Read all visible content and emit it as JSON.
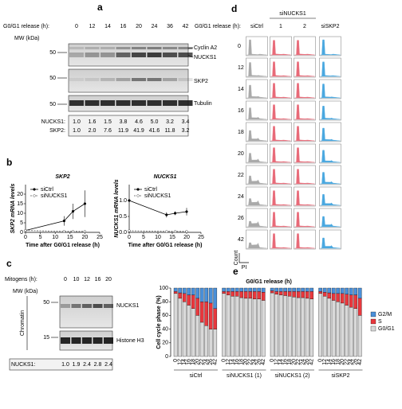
{
  "panel_labels": [
    "a",
    "b",
    "c",
    "d",
    "e"
  ],
  "blot_a": {
    "header_label": "G0/G1 release (h):",
    "times": [
      0,
      12,
      14,
      16,
      20,
      24,
      36,
      42
    ],
    "mw_label": "MW (kDa)",
    "markers": [
      "50",
      "50",
      "50"
    ],
    "band_labels": [
      "Cyclin A2",
      "NUCKS1",
      "SKP2",
      "Tubulin"
    ],
    "quant": [
      {
        "label": "NUCKS1:",
        "values": [
          "1.0",
          "1.6",
          "1.5",
          "3.8",
          "4.6",
          "5.0",
          "3.2",
          "3.4"
        ]
      },
      {
        "label": "SKP2:",
        "values": [
          "1.0",
          "2.0",
          "7.6",
          "11.9",
          "41.9",
          "41.6",
          "11.8",
          "3.2"
        ]
      }
    ]
  },
  "blot_c": {
    "header_label": "Mitogens (h):",
    "times": [
      0,
      10,
      12,
      16,
      20
    ],
    "mw_label": "MW (kDa)",
    "markers": [
      "50",
      "15"
    ],
    "band_labels": [
      "NUCKS1",
      "Histone H3"
    ],
    "fraction_label": "Chromatin",
    "quant": [
      {
        "label": "NUCKS1:",
        "values": [
          "1.0",
          "1.9",
          "2.4",
          "2.8",
          "2.4"
        ]
      }
    ]
  },
  "flow_d": {
    "header_label": "G0/G1 release (h):",
    "group_label": "siNUCKS1",
    "columns": [
      "siCtrl",
      "1",
      "2",
      "siSKP2"
    ],
    "rows": [
      0,
      12,
      14,
      16,
      18,
      20,
      22,
      24,
      26,
      42
    ],
    "x_axis": "PI",
    "y_axis": "Count"
  },
  "chart_data": [
    {
      "type": "line",
      "title": "SKP2",
      "xlabel": "Time after G0/G1 release (h)",
      "ylabel": "SKP2 mRNA levels",
      "x": [
        0,
        13,
        16,
        20
      ],
      "xlim": [
        0,
        25
      ],
      "xticks": [
        0,
        5,
        10,
        15,
        20,
        25
      ],
      "ylim": [
        0,
        25
      ],
      "yticks": [
        0,
        5,
        10,
        15,
        20
      ],
      "series": [
        {
          "name": "siCtrl",
          "color": "#000000",
          "line_style": "solid",
          "values": [
            1,
            6,
            11,
            15
          ],
          "errors": [
            0.3,
            2.5,
            4,
            7
          ]
        },
        {
          "name": "siNUCKS1",
          "color": "#555555",
          "line_style": "dashed",
          "values": [
            1,
            0.5,
            0.5,
            0.5
          ],
          "errors": [
            0.1,
            0.2,
            0.2,
            0.2
          ]
        }
      ]
    },
    {
      "type": "line",
      "title": "NUCKS1",
      "xlabel": "Time after G0/G1 release (h)",
      "ylabel": "NUCKS1 mRNA levels",
      "x": [
        0,
        13,
        16,
        20
      ],
      "xlim": [
        0,
        25
      ],
      "xticks": [
        0,
        5,
        10,
        15,
        20,
        25
      ],
      "ylim": [
        0,
        1.5
      ],
      "yticks": [
        {
          "value": 0,
          "label": "0.0"
        },
        {
          "value": 0.5,
          "label": "0.5"
        },
        {
          "value": 1,
          "label": "1.0"
        }
      ],
      "series": [
        {
          "name": "siCtrl",
          "color": "#000000",
          "line_style": "solid",
          "values": [
            1.0,
            0.55,
            0.6,
            0.65
          ],
          "errors": [
            0.02,
            0.08,
            0.06,
            0.12
          ]
        },
        {
          "name": "siNUCKS1",
          "color": "#555555",
          "line_style": "dashed",
          "values": [
            0.05,
            0.03,
            0.03,
            0.03
          ],
          "errors": [
            0.01,
            0.01,
            0.01,
            0.01
          ]
        }
      ]
    },
    {
      "type": "stacked_bar",
      "title": "G0/G1 release (h)",
      "ylabel": "Cell cycle phase (%)",
      "categories": [
        0,
        12,
        14,
        16,
        18,
        20,
        22,
        24,
        26,
        42,
        0,
        12,
        14,
        16,
        18,
        20,
        22,
        24,
        26,
        42,
        0,
        12,
        14,
        16,
        18,
        20,
        22,
        24,
        26,
        42,
        0,
        12,
        14,
        16,
        18,
        20,
        22,
        24,
        26,
        42
      ],
      "groups": [
        "siCtrl",
        "siNUCKS1 (1)",
        "siNUCKS1 (2)",
        "siSKP2"
      ],
      "ylim": [
        0,
        100
      ],
      "yticks": [
        0,
        20,
        40,
        60,
        80,
        100
      ],
      "series": [
        {
          "name": "G0/G1",
          "color": "#d9d9d9",
          "values": [
            92,
            85,
            80,
            75,
            70,
            60,
            50,
            45,
            40,
            40,
            92,
            90,
            88,
            88,
            86,
            85,
            85,
            84,
            84,
            82,
            93,
            91,
            90,
            89,
            88,
            87,
            86,
            86,
            85,
            84,
            92,
            88,
            85,
            82,
            80,
            78,
            75,
            72,
            70,
            60
          ]
        },
        {
          "name": "S",
          "color": "#e8383d",
          "values": [
            3,
            8,
            12,
            15,
            20,
            25,
            30,
            35,
            38,
            30,
            3,
            5,
            7,
            7,
            9,
            10,
            10,
            11,
            11,
            12,
            3,
            4,
            5,
            6,
            7,
            8,
            9,
            9,
            10,
            11,
            3,
            6,
            8,
            10,
            12,
            14,
            16,
            18,
            20,
            25
          ]
        },
        {
          "name": "G2/M",
          "color": "#4a90d9",
          "values": [
            5,
            7,
            8,
            10,
            10,
            15,
            20,
            20,
            22,
            30,
            5,
            5,
            5,
            5,
            5,
            5,
            5,
            5,
            5,
            6,
            4,
            5,
            5,
            5,
            5,
            5,
            5,
            5,
            5,
            5,
            5,
            6,
            7,
            8,
            8,
            8,
            9,
            10,
            10,
            15
          ]
        }
      ]
    }
  ]
}
